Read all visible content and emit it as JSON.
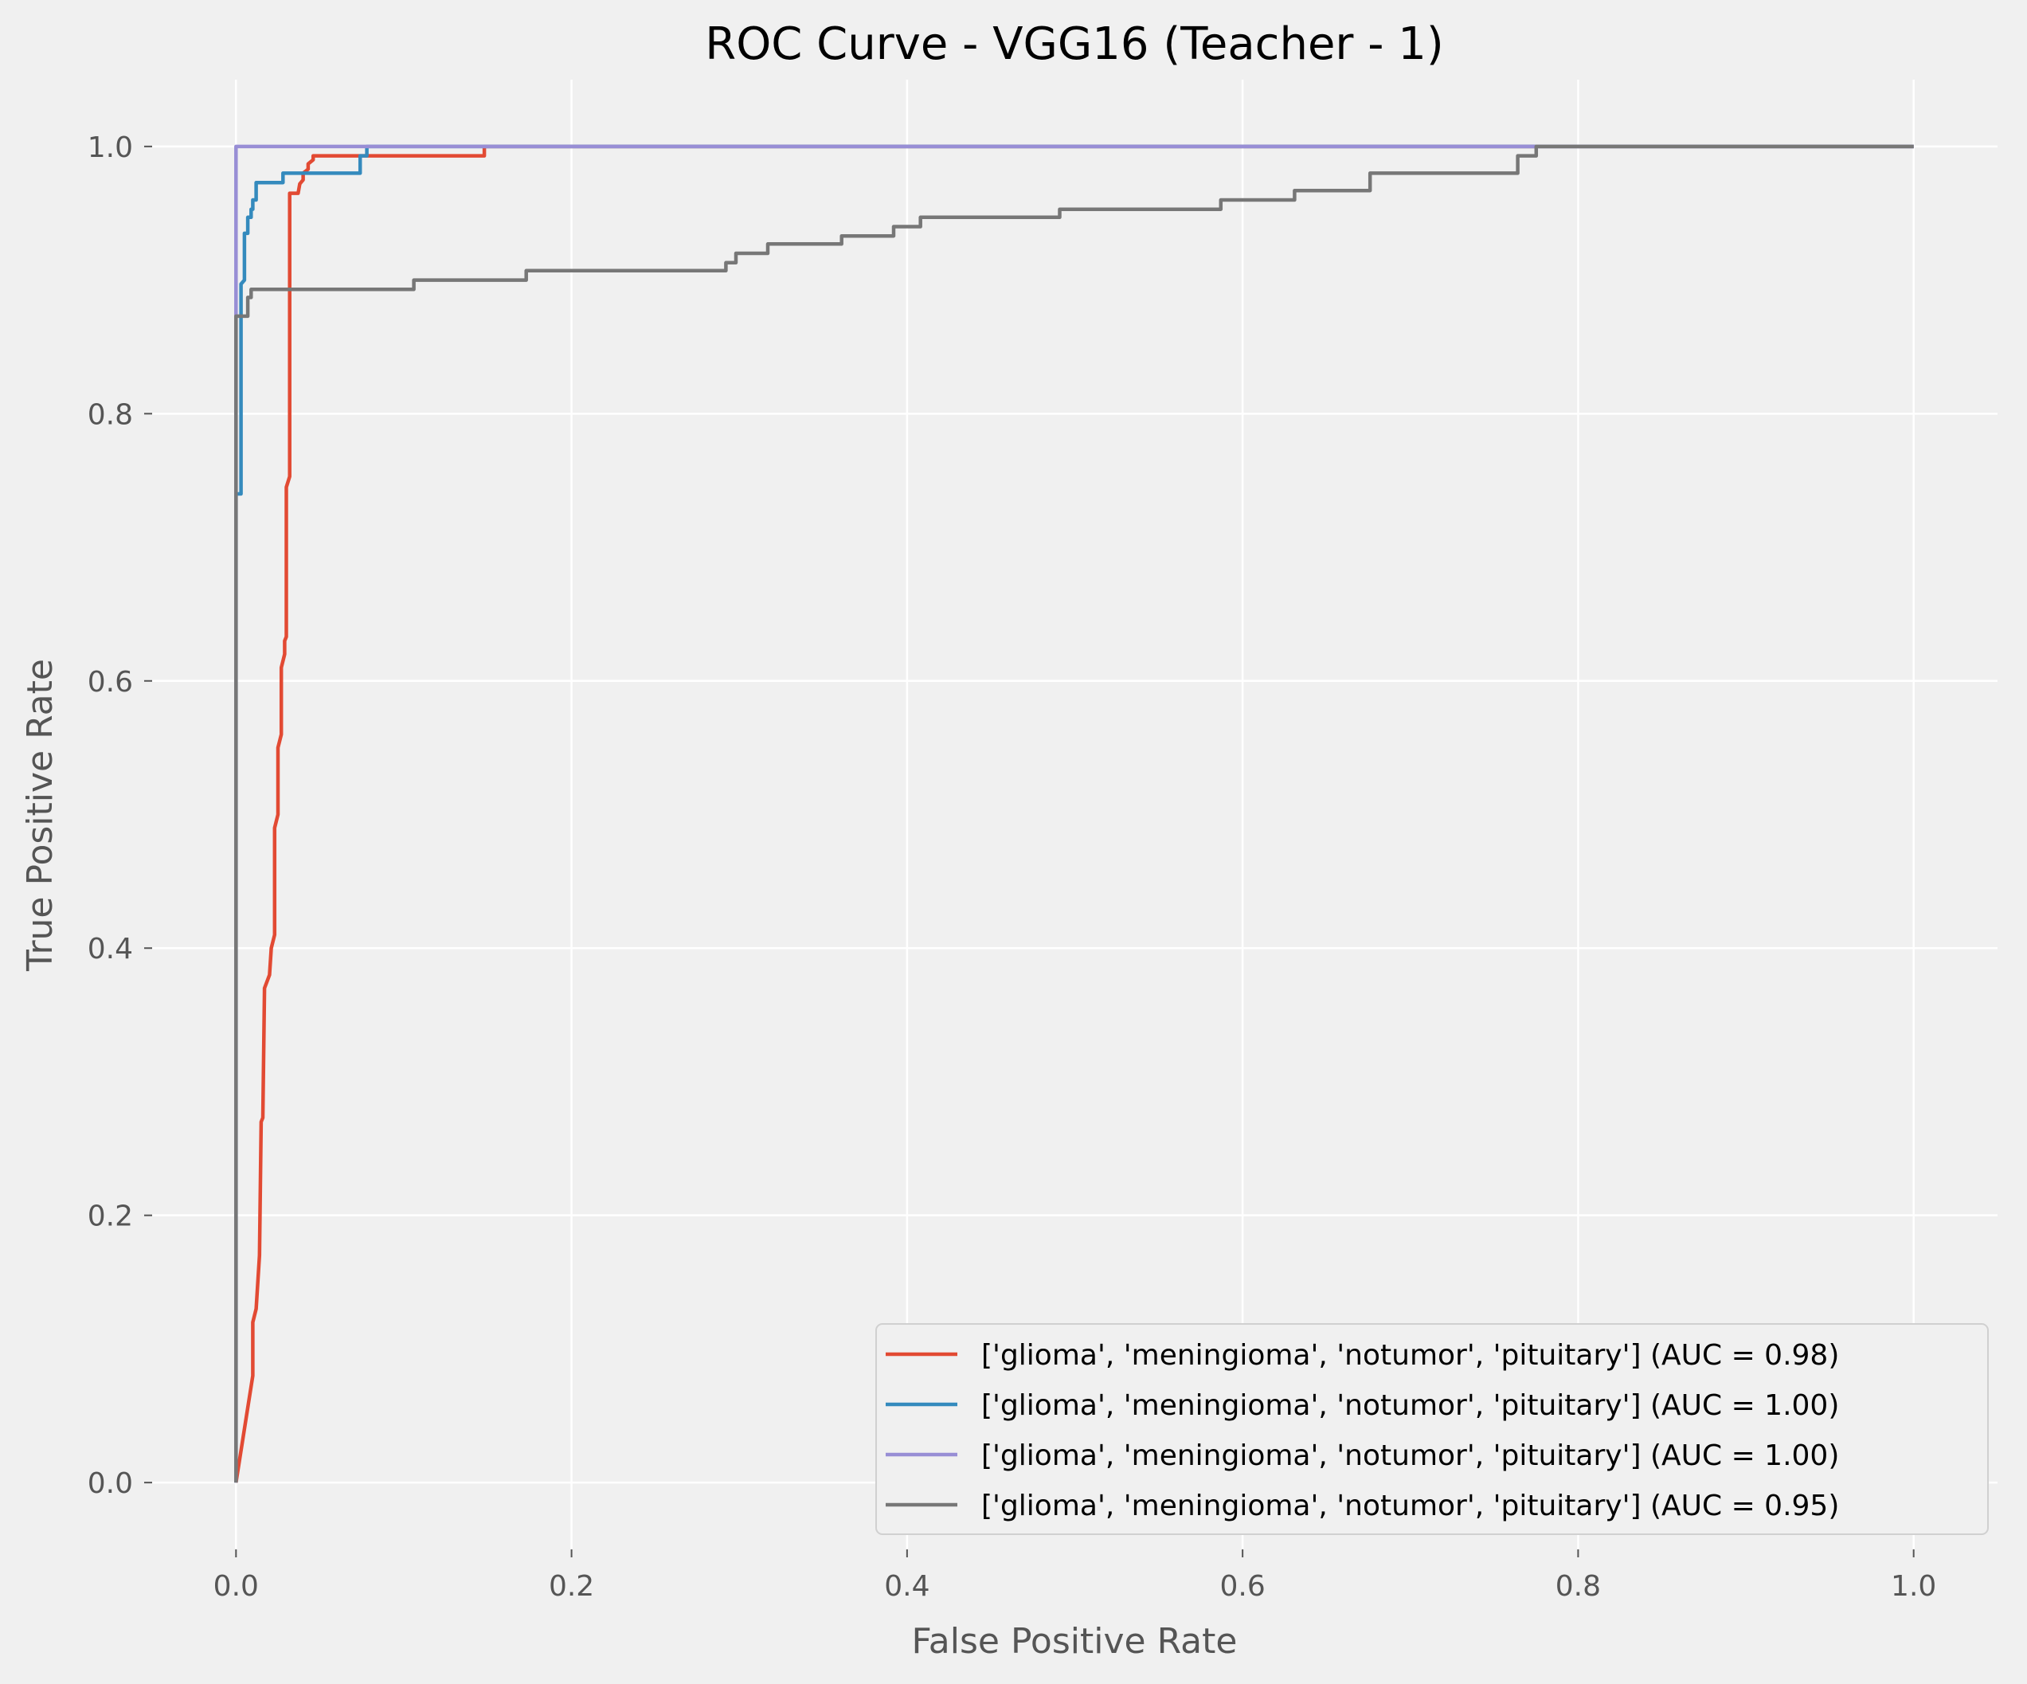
{
  "chart_data": {
    "type": "line",
    "title": "ROC Curve - VGG16 (Teacher - 1)",
    "xlabel": "False Positive Rate",
    "ylabel": "True Positive Rate",
    "xlim": [
      -0.05,
      1.05
    ],
    "ylim": [
      -0.05,
      1.05
    ],
    "xticks": [
      0.0,
      0.2,
      0.4,
      0.6,
      0.8,
      1.0
    ],
    "xtick_labels": [
      "0.0",
      "0.2",
      "0.4",
      "0.6",
      "0.8",
      "1.0"
    ],
    "yticks": [
      0.0,
      0.2,
      0.4,
      0.6,
      0.8,
      1.0
    ],
    "ytick_labels": [
      "0.0",
      "0.2",
      "0.4",
      "0.6",
      "0.8",
      "1.0"
    ],
    "grid": true,
    "legend_position": "lower-right",
    "style": {
      "background": "#f0f0f0",
      "grid_color": "#ffffff",
      "axis_text_color": "#555555"
    },
    "series": [
      {
        "name": "['glioma', 'meningioma', 'notumor', 'pituitary'] (AUC = 0.98)",
        "color": "#E24A33",
        "points": [
          [
            0.0,
            0.0
          ],
          [
            0.01,
            0.08
          ],
          [
            0.01,
            0.12
          ],
          [
            0.012,
            0.13
          ],
          [
            0.014,
            0.17
          ],
          [
            0.015,
            0.27
          ],
          [
            0.016,
            0.273
          ],
          [
            0.017,
            0.37
          ],
          [
            0.02,
            0.38
          ],
          [
            0.021,
            0.4
          ],
          [
            0.023,
            0.41
          ],
          [
            0.023,
            0.49
          ],
          [
            0.025,
            0.5
          ],
          [
            0.025,
            0.55
          ],
          [
            0.027,
            0.56
          ],
          [
            0.027,
            0.61
          ],
          [
            0.029,
            0.62
          ],
          [
            0.029,
            0.63
          ],
          [
            0.03,
            0.633
          ],
          [
            0.03,
            0.745
          ],
          [
            0.032,
            0.753
          ],
          [
            0.032,
            0.965
          ],
          [
            0.037,
            0.965
          ],
          [
            0.038,
            0.972
          ],
          [
            0.04,
            0.975
          ],
          [
            0.04,
            0.98
          ],
          [
            0.043,
            0.983
          ],
          [
            0.043,
            0.987
          ],
          [
            0.046,
            0.99
          ],
          [
            0.046,
            0.993
          ],
          [
            0.148,
            0.993
          ],
          [
            0.148,
            1.0
          ],
          [
            1.0,
            1.0
          ]
        ]
      },
      {
        "name": "['glioma', 'meningioma', 'notumor', 'pituitary'] (AUC = 1.00)",
        "color": "#348ABD",
        "points": [
          [
            0.0,
            0.0
          ],
          [
            0.0,
            0.74
          ],
          [
            0.003,
            0.74
          ],
          [
            0.003,
            0.897
          ],
          [
            0.005,
            0.9
          ],
          [
            0.005,
            0.935
          ],
          [
            0.007,
            0.935
          ],
          [
            0.007,
            0.947
          ],
          [
            0.009,
            0.947
          ],
          [
            0.009,
            0.953
          ],
          [
            0.01,
            0.953
          ],
          [
            0.01,
            0.96
          ],
          [
            0.012,
            0.96
          ],
          [
            0.012,
            0.973
          ],
          [
            0.028,
            0.973
          ],
          [
            0.028,
            0.98
          ],
          [
            0.074,
            0.98
          ],
          [
            0.074,
            0.993
          ],
          [
            0.078,
            0.993
          ],
          [
            0.078,
            1.0
          ],
          [
            1.0,
            1.0
          ]
        ]
      },
      {
        "name": "['glioma', 'meningioma', 'notumor', 'pituitary'] (AUC = 1.00)",
        "color": "#988ED5",
        "points": [
          [
            0.0,
            0.0
          ],
          [
            0.0,
            1.0
          ],
          [
            1.0,
            1.0
          ]
        ]
      },
      {
        "name": "['glioma', 'meningioma', 'notumor', 'pituitary'] (AUC = 0.95)",
        "color": "#777777",
        "points": [
          [
            0.0,
            0.0
          ],
          [
            0.0,
            0.873
          ],
          [
            0.007,
            0.873
          ],
          [
            0.007,
            0.887
          ],
          [
            0.009,
            0.887
          ],
          [
            0.009,
            0.893
          ],
          [
            0.106,
            0.893
          ],
          [
            0.106,
            0.9
          ],
          [
            0.173,
            0.9
          ],
          [
            0.173,
            0.907
          ],
          [
            0.292,
            0.907
          ],
          [
            0.292,
            0.913
          ],
          [
            0.298,
            0.913
          ],
          [
            0.298,
            0.92
          ],
          [
            0.317,
            0.92
          ],
          [
            0.317,
            0.927
          ],
          [
            0.361,
            0.927
          ],
          [
            0.361,
            0.933
          ],
          [
            0.392,
            0.933
          ],
          [
            0.392,
            0.94
          ],
          [
            0.408,
            0.94
          ],
          [
            0.408,
            0.947
          ],
          [
            0.491,
            0.947
          ],
          [
            0.491,
            0.953
          ],
          [
            0.587,
            0.953
          ],
          [
            0.587,
            0.96
          ],
          [
            0.631,
            0.96
          ],
          [
            0.631,
            0.967
          ],
          [
            0.676,
            0.967
          ],
          [
            0.676,
            0.98
          ],
          [
            0.764,
            0.98
          ],
          [
            0.764,
            0.993
          ],
          [
            0.775,
            0.993
          ],
          [
            0.775,
            1.0
          ],
          [
            1.0,
            1.0
          ]
        ]
      }
    ]
  }
}
